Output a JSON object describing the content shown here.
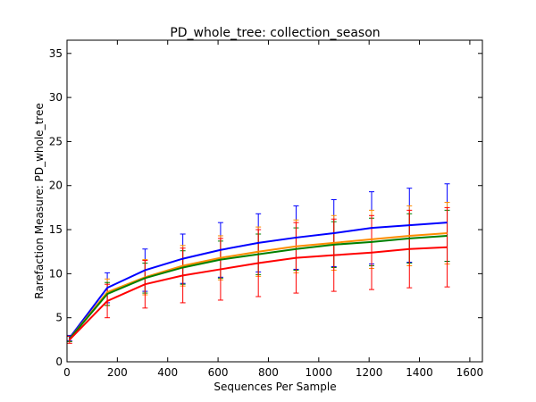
{
  "chart_data": {
    "type": "line",
    "title": "PD_whole_tree: collection_season",
    "xlabel": "Sequences Per Sample",
    "ylabel": "Rarefaction Measure: PD_whole_tree",
    "xlim": [
      0,
      1650
    ],
    "ylim": [
      0,
      36.5
    ],
    "x_ticks": [
      0,
      200,
      400,
      600,
      800,
      1000,
      1200,
      1400,
      1600
    ],
    "y_ticks": [
      0,
      5,
      10,
      15,
      20,
      25,
      30,
      35
    ],
    "grid": false,
    "x": [
      10,
      160,
      310,
      460,
      610,
      760,
      910,
      1060,
      1210,
      1360,
      1510
    ],
    "series": [
      {
        "color": "#0000ff",
        "values": [
          2.7,
          8.4,
          10.4,
          11.7,
          12.7,
          13.5,
          14.1,
          14.6,
          15.2,
          15.5,
          15.8
        ],
        "err": [
          0.3,
          1.7,
          2.4,
          2.8,
          3.1,
          3.3,
          3.6,
          3.8,
          4.1,
          4.2,
          4.4
        ]
      },
      {
        "color": "#ff8c00",
        "values": [
          2.6,
          7.9,
          9.6,
          10.9,
          11.8,
          12.5,
          13.1,
          13.5,
          13.9,
          14.3,
          14.6
        ],
        "err": [
          0.3,
          1.5,
          2.0,
          2.3,
          2.5,
          2.8,
          3.0,
          3.1,
          3.3,
          3.4,
          3.5
        ]
      },
      {
        "color": "#008000",
        "values": [
          2.6,
          7.7,
          9.5,
          10.7,
          11.6,
          12.2,
          12.8,
          13.3,
          13.6,
          14.0,
          14.3
        ],
        "err": [
          0.3,
          1.3,
          1.7,
          1.9,
          2.1,
          2.3,
          2.4,
          2.6,
          2.7,
          2.8,
          2.9
        ]
      },
      {
        "color": "#ff0000",
        "values": [
          2.5,
          6.9,
          8.8,
          9.8,
          10.5,
          11.2,
          11.8,
          12.1,
          12.4,
          12.8,
          13.0
        ],
        "err": [
          0.4,
          1.9,
          2.7,
          3.1,
          3.5,
          3.8,
          4.0,
          4.1,
          4.2,
          4.4,
          4.5
        ]
      }
    ]
  }
}
